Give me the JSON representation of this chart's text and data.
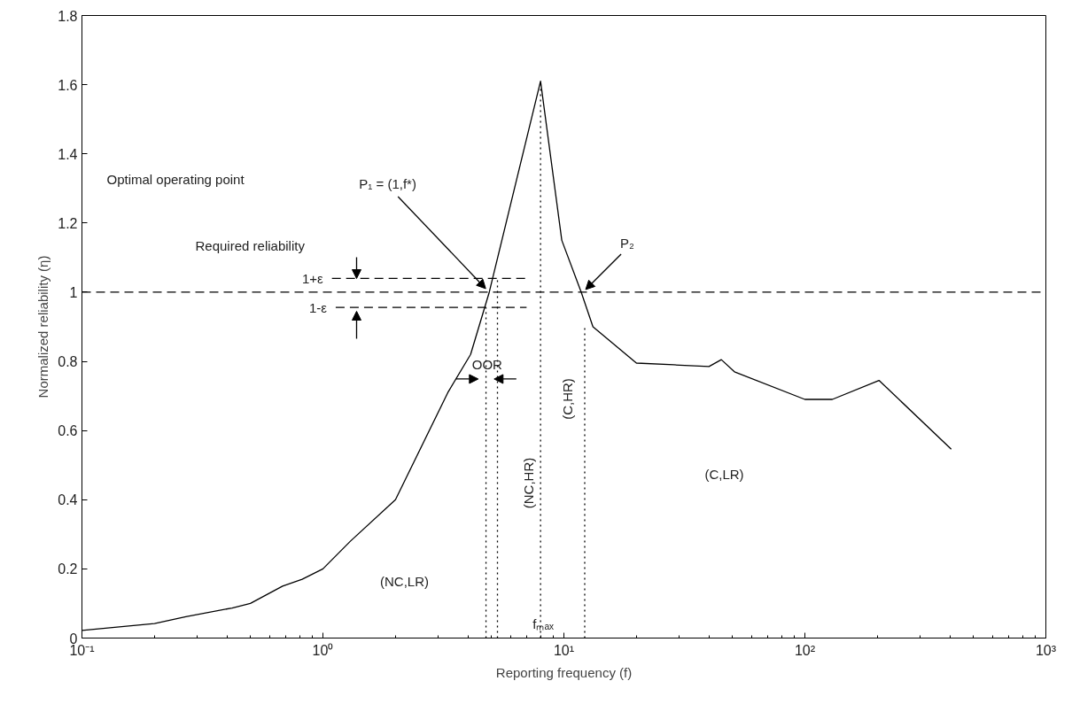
{
  "chart_data": {
    "type": "line",
    "xlabel": "Reporting frequency (f)",
    "ylabel": "Normalized reliability (η)",
    "log": "x",
    "xlim": [
      0.1,
      1000
    ],
    "ylim": [
      0,
      1.8
    ],
    "xticks": [
      {
        "value": 0.1,
        "label": "10⁻¹"
      },
      {
        "value": 1,
        "label": "10⁰"
      },
      {
        "value": 10,
        "label": "10¹"
      },
      {
        "value": 100,
        "label": "10²"
      },
      {
        "value": 1000,
        "label": "10³"
      }
    ],
    "yticks": [
      0,
      0.2,
      0.4,
      0.6,
      0.8,
      1,
      1.2,
      1.4,
      1.6,
      1.8
    ],
    "grid": false,
    "marker": "none",
    "line_style": "solid",
    "series": [
      {
        "color": "#000000",
        "x": [
          0.1,
          0.2,
          0.27,
          0.42,
          0.5,
          0.68,
          0.82,
          1,
          1.3,
          2.0,
          3.3,
          4.1,
          4.9,
          8,
          9.8,
          11.8,
          13.2,
          20,
          28.6,
          40,
          45,
          51,
          100,
          130,
          203,
          405
        ],
        "values": [
          0.022,
          0.042,
          0.062,
          0.087,
          0.1,
          0.15,
          0.17,
          0.2,
          0.28,
          0.4,
          0.71,
          0.82,
          1.0,
          1.61,
          1.15,
          1.0,
          0.9,
          0.795,
          0.79,
          0.785,
          0.805,
          0.77,
          0.69,
          0.69,
          0.745,
          0.546
        ]
      },
      {
        "color": "#000000",
        "line_style": "dashed",
        "x": [
          1.09,
          7.0
        ],
        "values": [
          1.04,
          1.04
        ]
      },
      {
        "color": "#000000",
        "line_style": "dashed",
        "x": [
          1.13,
          7.0
        ],
        "values": [
          0.956,
          0.956
        ]
      },
      {
        "color": "#000000",
        "line_style": "dotted",
        "x": [
          4.75,
          4.75
        ],
        "values": [
          0,
          0.956
        ]
      },
      {
        "color": "#000000",
        "line_style": "dotted",
        "x": [
          5.3,
          5.3
        ],
        "values": [
          0,
          1.04
        ]
      },
      {
        "color": "#000000",
        "line_style": "dotted",
        "x": [
          8,
          8
        ],
        "values": [
          0,
          1.61
        ]
      },
      {
        "color": "#000000",
        "line_style": "dotted",
        "x": [
          12.2,
          12.2
        ],
        "values": [
          0,
          0.9
        ]
      }
    ],
    "ref_lines": [
      {
        "axis": "y",
        "value": 1,
        "color": "#000000",
        "line_style": "dashed"
      }
    ],
    "annotations": [
      "Optimal operating point",
      {
        "text": "P₁ = (1,f*)",
        "x": 4.9,
        "y": 1.0
      },
      "Required reliability",
      {
        "text": "1+ε",
        "x": 1.09,
        "y": 1.04
      },
      {
        "text": "1-ε",
        "x": 1.13,
        "y": 0.956
      },
      {
        "text": "OOR",
        "x": 4.8,
        "y": 0.79
      },
      "(NC,HR)",
      "(C,HR)",
      "(NC,LR)",
      "(C,LR)",
      {
        "text": "P₂",
        "x": 12,
        "y": 1.0
      },
      {
        "text": "fₘₐₓ",
        "x": 8.2,
        "y": 0.04
      }
    ]
  }
}
